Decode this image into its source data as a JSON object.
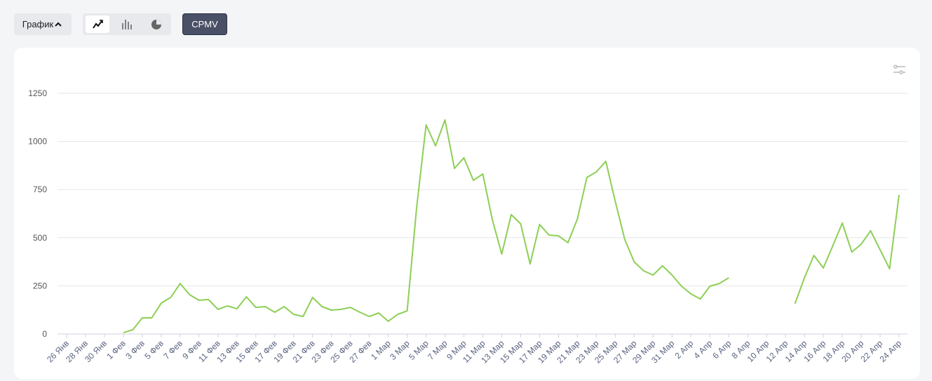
{
  "toolbar": {
    "view_button": "График",
    "metric_button": "CPMV"
  },
  "chart_data": {
    "type": "line",
    "categories": [
      "26 Янв",
      null,
      "28 Янв",
      null,
      "30 Янв",
      null,
      "1 Фев",
      null,
      "3 Фев",
      null,
      "5 Фев",
      null,
      "7 Фев",
      null,
      "9 Фев",
      null,
      "11 Фев",
      null,
      "13 Фев",
      null,
      "15 Фев",
      null,
      "17 Фев",
      null,
      "19 Фев",
      null,
      "21 Фев",
      null,
      "23 Фев",
      null,
      "25 Фев",
      null,
      "27 Фев",
      null,
      "1 Мар",
      null,
      "3 Мар",
      null,
      "5 Мар",
      null,
      "7 Мар",
      null,
      "9 Мар",
      null,
      "11 Мар",
      null,
      "13 Мар",
      null,
      "15 Мар",
      null,
      "17 Мар",
      null,
      "19 Мар",
      null,
      "21 Мар",
      null,
      "23 Мар",
      null,
      "25 Мар",
      null,
      "27 Мар",
      null,
      "29 Мар",
      null,
      "31 Мар",
      null,
      "2 Апр",
      null,
      "4 Апр",
      null,
      "6 Апр",
      null,
      "8 Апр",
      null,
      "10 Апр",
      null,
      "12 Апр",
      null,
      "14 Апр",
      null,
      "16 Апр",
      null,
      "18 Апр",
      null,
      "20 Апр",
      null,
      "22 Апр",
      null,
      "24 Апр"
    ],
    "values": [
      null,
      null,
      null,
      null,
      null,
      null,
      7,
      22,
      84,
      84,
      160,
      190,
      262,
      204,
      175,
      179,
      128,
      146,
      131,
      193,
      138,
      142,
      113,
      142,
      102,
      91,
      190,
      142,
      124,
      128,
      138,
      113,
      91,
      109,
      66,
      102,
      120,
      656,
      1086,
      977,
      1112,
      860,
      915,
      798,
      831,
      594,
      415,
      620,
      572,
      364,
      569,
      514,
      510,
      474,
      598,
      813,
      842,
      897,
      689,
      492,
      375,
      328,
      306,
      354,
      306,
      248,
      208,
      182,
      248,
      262,
      292,
      null,
      null,
      null,
      null,
      null,
      null,
      157,
      292,
      408,
      343,
      459,
      576,
      426,
      466,
      536,
      437,
      339,
      722
    ],
    "color": "#8dcf55",
    "ylim": [
      0,
      1250
    ],
    "yticks": [
      0,
      250,
      500,
      750,
      1000,
      1250
    ],
    "grid": true
  }
}
